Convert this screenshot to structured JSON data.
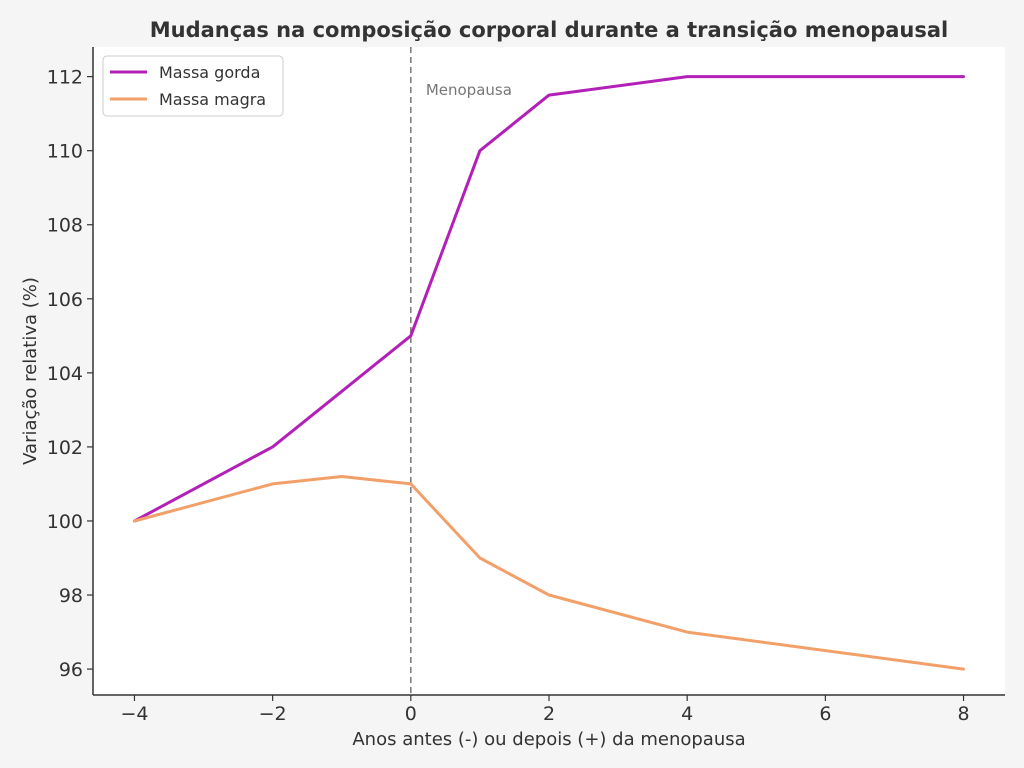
{
  "chart_data": {
    "type": "line",
    "title": "Mudanças na composição corporal durante a transição menopausal",
    "xlabel": "Anos antes (-) ou depois (+) da menopausa",
    "ylabel": "Variação relativa (%)",
    "xlim": [
      -4.6,
      8.6
    ],
    "ylim": [
      95.3,
      112.8
    ],
    "x_ticks": [
      -4,
      -2,
      0,
      2,
      4,
      6,
      8
    ],
    "x_tick_labels": [
      "−4",
      "−2",
      "0",
      "2",
      "4",
      "6",
      "8"
    ],
    "y_ticks": [
      96,
      98,
      100,
      102,
      104,
      106,
      108,
      110,
      112
    ],
    "y_tick_labels": [
      "96",
      "98",
      "100",
      "102",
      "104",
      "106",
      "108",
      "110",
      "112"
    ],
    "grid": false,
    "legend_position": "top-left",
    "series": [
      {
        "name": "Massa gorda",
        "color": "#b320b8",
        "x": [
          -4,
          -2,
          -1,
          0,
          1,
          2,
          4,
          8
        ],
        "y": [
          100,
          102,
          103.5,
          105,
          110,
          111.5,
          112,
          112
        ]
      },
      {
        "name": "Massa magra",
        "color": "#f2a06a",
        "x": [
          -4,
          -2,
          -1,
          0,
          1,
          2,
          4,
          8
        ],
        "y": [
          100,
          101,
          101.2,
          101,
          99,
          98,
          97,
          96
        ]
      }
    ],
    "annotations": [
      {
        "type": "vline",
        "x": 0,
        "label": "Menopausa",
        "color": "#777777"
      }
    ]
  }
}
